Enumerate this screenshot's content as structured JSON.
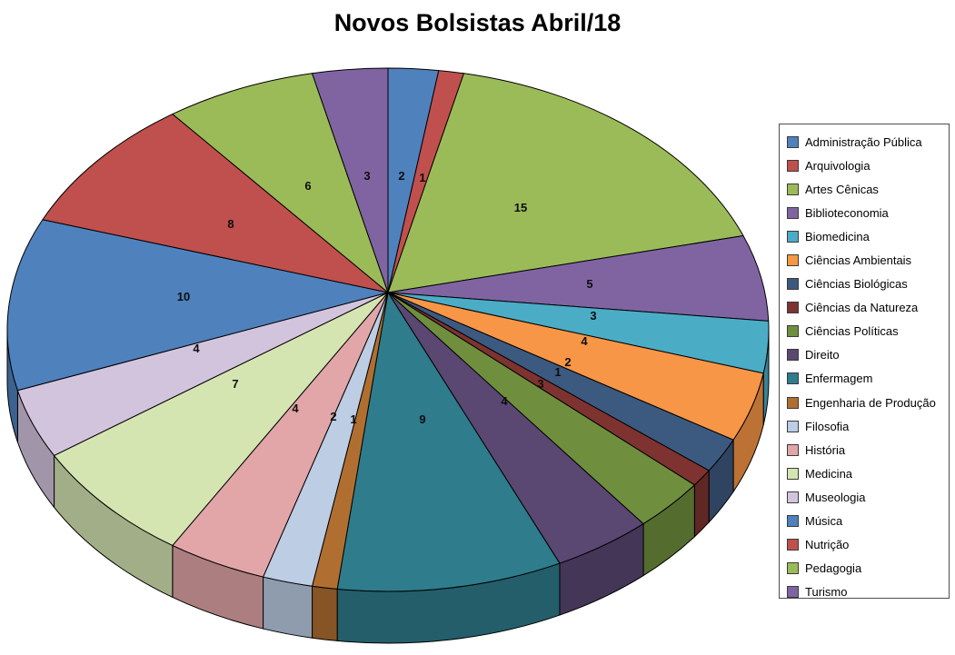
{
  "chart_data": {
    "type": "pie",
    "title": "Novos Bolsistas Abril/18",
    "effect_3d": true,
    "legend_position": "right",
    "data_labels": "values",
    "categories": [
      "Administração Pública",
      "Arquivologia",
      "Artes Cênicas",
      "Biblioteconomia",
      "Biomedicina",
      "Ciências Ambientais",
      "Ciências Biológicas",
      "Ciências da Natureza",
      "Ciências Políticas",
      "Direito",
      "Enfermagem",
      "Engenharia de Produção",
      "Filosofia",
      "História",
      "Medicina",
      "Museologia",
      "Música",
      "Nutrição",
      "Pedagogia",
      "Turismo"
    ],
    "values": [
      2,
      1,
      15,
      5,
      3,
      4,
      2,
      1,
      3,
      4,
      9,
      1,
      2,
      4,
      7,
      4,
      10,
      8,
      6,
      3
    ],
    "colors": [
      "#4F81BD",
      "#C0504D",
      "#9BBB59",
      "#8064A2",
      "#4BACC6",
      "#F79646",
      "#3C5A80",
      "#7E3331",
      "#6F8F3E",
      "#5A4772",
      "#2E7C8C",
      "#B06F31",
      "#BCCDE4",
      "#E2A6A8",
      "#D5E5B2",
      "#D3C4DE",
      "#4F81BD",
      "#C0504D",
      "#9BBB59",
      "#8064A2"
    ]
  }
}
